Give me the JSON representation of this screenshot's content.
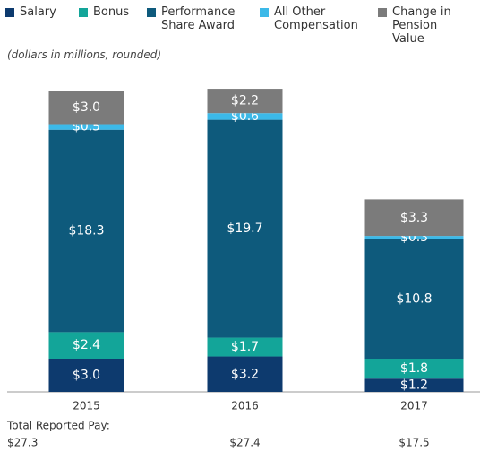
{
  "chart_data": {
    "type": "stacked_bar",
    "subtitle": "(dollars in millions, rounded)",
    "categories": [
      "2015",
      "2016",
      "2017"
    ],
    "series": [
      {
        "name": "Salary",
        "color": "#0d3a6e",
        "values": [
          3.0,
          3.2,
          1.2
        ],
        "value_labels": [
          "$3.0",
          "$3.2",
          "$1.2"
        ]
      },
      {
        "name": "Bonus",
        "color": "#13a599",
        "values": [
          2.4,
          1.7,
          1.8
        ],
        "value_labels": [
          "$2.4",
          "$1.7",
          "$1.8"
        ]
      },
      {
        "name": "Performance Share Award",
        "color": "#0e5a7c",
        "values": [
          18.3,
          19.7,
          10.8
        ],
        "value_labels": [
          "$18.3",
          "$19.7",
          "$10.8"
        ]
      },
      {
        "name": "All Other Compensation",
        "color": "#3cb9e8",
        "values": [
          0.5,
          0.6,
          0.3
        ],
        "value_labels": [
          "$0.5",
          "$0.6",
          "$0.3"
        ]
      },
      {
        "name": "Change in Pension Value",
        "color": "#7b7b7b",
        "values": [
          3.0,
          2.2,
          3.3
        ],
        "value_labels": [
          "$3.0",
          "$2.2",
          "$3.3"
        ]
      }
    ],
    "ylim": [
      0,
      30
    ],
    "total_title": "Total Reported Pay:",
    "totals": [
      "$27.3",
      "$27.4",
      "$17.5"
    ]
  }
}
